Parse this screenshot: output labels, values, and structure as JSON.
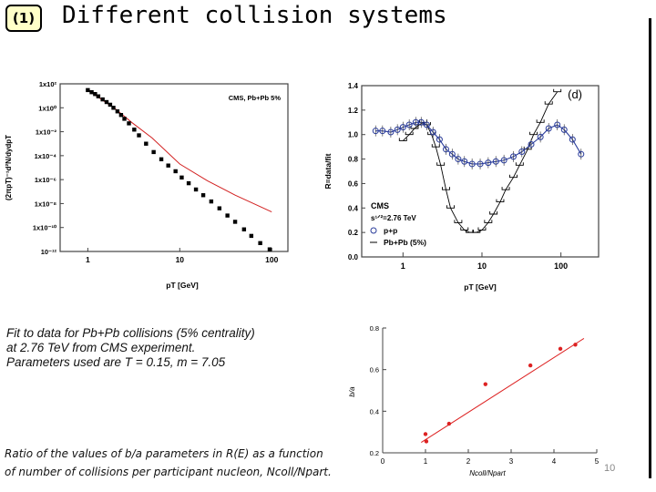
{
  "slide": {
    "badge": "(1)",
    "title": "Different collision systems",
    "page_number": "10"
  },
  "caption_fit": {
    "line1": "Fit to data for Pb+Pb collisions (5% centrality)",
    "line2": "at 2.76 TeV  from CMS experiment.",
    "line3": "Parameters used are T = 0.15, m = 7.05"
  },
  "caption_ratio": {
    "line1": "Ratio of the values of b/a parameters in R(E) as a function",
    "line2": "of number of collisions per participant nucleon, Ncoll/Npart."
  },
  "chart_data": [
    {
      "type": "scatter",
      "title": "CMS, Pb+Pb 5%",
      "xlabel": "pT [GeV]",
      "ylabel": "(2πpT)⁻¹d²N/dydpT",
      "xscale": "log",
      "yscale": "log",
      "xlim": [
        0.5,
        150
      ],
      "ylim": [
        1e-12,
        100.0
      ],
      "xticks": [
        "1",
        "10",
        "100"
      ],
      "yticks": [
        "1x10²",
        "1x10⁰",
        "1x10⁻²",
        "1x10⁻⁴",
        "1x10⁻⁶",
        "1x10⁻⁸",
        "1x10⁻¹⁰",
        "10⁻¹²"
      ],
      "series": [
        {
          "name": "data",
          "x": [
            1.0,
            1.1,
            1.2,
            1.3,
            1.45,
            1.6,
            1.75,
            1.9,
            2.1,
            2.3,
            2.5,
            2.8,
            3.2,
            3.6,
            4.3,
            5.2,
            6.3,
            7.5,
            9.0,
            10.5,
            12.5,
            15,
            18,
            22,
            27,
            33,
            40,
            50,
            60,
            75,
            95
          ],
          "y": [
            30,
            20,
            14,
            9,
            5,
            3,
            1.8,
            1.0,
            0.5,
            0.25,
            0.12,
            0.05,
            0.015,
            0.005,
            0.001,
            0.0002,
            5e-05,
            1.5e-05,
            5e-06,
            1.5e-06,
            5e-07,
            1.5e-07,
            5e-08,
            1.5e-08,
            4e-09,
            1e-09,
            3e-10,
            7e-11,
            2e-11,
            5e-12,
            1.5e-12
          ]
        },
        {
          "name": "fit",
          "x": [
            1,
            2,
            3,
            5,
            10,
            20,
            40,
            100
          ],
          "y": [
            30,
            0.8,
            0.06,
            0.003,
            2e-05,
            8e-07,
            5e-08,
            2e-09
          ]
        }
      ],
      "colors": {
        "data": "#000000",
        "fit": "#d22020"
      }
    },
    {
      "type": "line",
      "panel_label": "(d)",
      "xlabel": "pT [GeV]",
      "ylabel": "R=data/fit",
      "xscale": "log",
      "xlim": [
        0.3,
        300
      ],
      "ylim": [
        0.0,
        1.4
      ],
      "xticks": [
        "1",
        "10",
        "100"
      ],
      "yticks": [
        "0.0",
        "0.2",
        "0.4",
        "0.6",
        "0.8",
        "1.0",
        "1.2",
        "1.4"
      ],
      "legend_lines": [
        "CMS",
        "s¹ᐟ²=2.76 TeV",
        "p+p",
        "Pb+Pb (5%)"
      ],
      "legend_position": "bottom-left",
      "series": [
        {
          "name": "p+p",
          "x": [
            0.45,
            0.55,
            0.7,
            0.85,
            1.0,
            1.2,
            1.45,
            1.7,
            2.0,
            2.4,
            2.9,
            3.5,
            4.2,
            5.0,
            6.0,
            7.5,
            9.5,
            12,
            15,
            19,
            25,
            32,
            42,
            55,
            70,
            90,
            110,
            140,
            180
          ],
          "y": [
            1.03,
            1.03,
            1.02,
            1.04,
            1.06,
            1.08,
            1.1,
            1.1,
            1.08,
            1.02,
            0.96,
            0.88,
            0.84,
            0.8,
            0.78,
            0.76,
            0.76,
            0.77,
            0.78,
            0.79,
            0.82,
            0.86,
            0.92,
            0.98,
            1.05,
            1.08,
            1.04,
            0.96,
            0.84
          ]
        },
        {
          "name": "Pb+Pb (5%)",
          "x": [
            1.0,
            1.2,
            1.4,
            1.6,
            1.8,
            2.0,
            2.3,
            2.6,
            3.0,
            3.5,
            4.0,
            5.0,
            6.0,
            7.0,
            8.5,
            10,
            12,
            14,
            17,
            20,
            25,
            30,
            38,
            45,
            55,
            70,
            90
          ],
          "y": [
            0.95,
            1.0,
            1.05,
            1.08,
            1.1,
            1.08,
            1.0,
            0.9,
            0.75,
            0.55,
            0.4,
            0.28,
            0.22,
            0.2,
            0.2,
            0.22,
            0.28,
            0.35,
            0.45,
            0.55,
            0.65,
            0.75,
            0.88,
            1.0,
            1.1,
            1.25,
            1.35
          ]
        }
      ],
      "colors": {
        "p+p": "#2a3c9a",
        "Pb+Pb (5%)": "#000000"
      }
    },
    {
      "type": "scatter",
      "xlabel": "Ncoll/Npart",
      "ylabel": "b/a",
      "xlim": [
        0,
        5
      ],
      "ylim": [
        0.2,
        0.8
      ],
      "xticks": [
        "0",
        "1",
        "2",
        "3",
        "4",
        "5"
      ],
      "yticks": [
        "0.2",
        "0.4",
        "0.6",
        "0.8"
      ],
      "series": [
        {
          "name": "points",
          "x": [
            1.0,
            1.02,
            1.55,
            2.4,
            3.45,
            4.15,
            4.5
          ],
          "y": [
            0.29,
            0.255,
            0.34,
            0.53,
            0.62,
            0.7,
            0.72
          ]
        },
        {
          "name": "fit",
          "x": [
            0.9,
            4.7
          ],
          "y": [
            0.25,
            0.75
          ]
        }
      ],
      "colors": {
        "points": "#dd2222",
        "fit": "#dd2222"
      }
    }
  ]
}
